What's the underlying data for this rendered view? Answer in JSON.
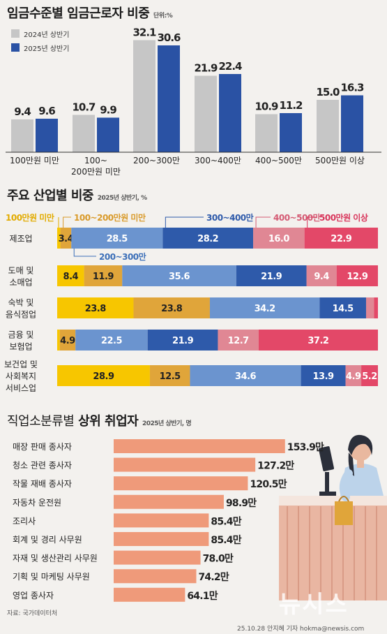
{
  "section1": {
    "title_bold": "임금수준별 임금근로자 비중",
    "unit": "단위:%"
  },
  "section2": {
    "title_bold": "주요 산업별 비중",
    "unit": "2025년 상반기, %"
  },
  "section3": {
    "title_light": "직업소분류별",
    "title_bold": "상위 취업자",
    "unit": "2025년 상반기, 명"
  },
  "colors": {
    "bg": "#f3f1ee",
    "gray": "#c6c6c6",
    "navy": "#2a52a4",
    "seg1": "#f7c600",
    "seg2": "#e0a53a",
    "seg3": "#6b94cf",
    "seg4": "#2e5aaa",
    "seg5": "#e08794",
    "seg6": "#e34868",
    "salmon": "#ef9a7a"
  },
  "chart_data": [
    {
      "type": "bar",
      "categories": [
        "100만원 미만",
        "100~\n200만원 미만",
        "200~300만",
        "300~400만",
        "400~500만",
        "500만원 이상"
      ],
      "series": [
        {
          "name": "2024년 상반기",
          "values": [
            9.4,
            10.7,
            32.1,
            21.9,
            10.9,
            15.0
          ]
        },
        {
          "name": "2025년 상반기",
          "values": [
            9.6,
            9.9,
            30.6,
            22.4,
            11.2,
            16.3
          ]
        }
      ],
      "legend": "top-left"
    },
    {
      "type": "bar",
      "orientation": "horizontal-stacked",
      "segment_labels": [
        "100만원 미만",
        "100~200만원 미만",
        "200~300만",
        "300~400만",
        "400~500만",
        "500만원 이상"
      ],
      "categories": [
        "제조업",
        "도매 및\n소매업",
        "숙박 및\n음식점업",
        "금융 및\n보험업",
        "보건업 및\n사회복지\n서비스업"
      ],
      "rows": [
        [
          1.0,
          3.4,
          28.5,
          28.2,
          16.0,
          22.9
        ],
        [
          8.4,
          11.9,
          35.6,
          21.9,
          9.4,
          12.9
        ],
        [
          23.8,
          23.8,
          34.2,
          14.5,
          2.5,
          1.2
        ],
        [
          0.8,
          4.9,
          22.5,
          21.9,
          12.7,
          37.2
        ],
        [
          28.9,
          12.5,
          34.6,
          13.9,
          4.9,
          5.2
        ]
      ],
      "shown_labels": [
        [
          "",
          "3.4",
          "28.5",
          "28.2",
          "16.0",
          "22.9"
        ],
        [
          "8.4",
          "11.9",
          "35.6",
          "21.9",
          "9.4",
          "12.9"
        ],
        [
          "23.8",
          "23.8",
          "34.2",
          "14.5",
          "",
          ""
        ],
        [
          "",
          "4.9",
          "22.5",
          "21.9",
          "12.7",
          "37.2"
        ],
        [
          "28.9",
          "12.5",
          "34.6",
          "13.9",
          "4.9",
          "5.2"
        ]
      ]
    },
    {
      "type": "bar",
      "orientation": "horizontal",
      "categories": [
        "매장 판매 종사자",
        "청소 관련 종사자",
        "작물 재배 종사자",
        "자동차 운전원",
        "조리사",
        "회계 및 경리 사무원",
        "자재 및 생산관리 사무원",
        "기획 및 마케팅 사무원",
        "영업 종사자"
      ],
      "values": [
        153.9,
        127.2,
        120.5,
        98.9,
        85.4,
        85.4,
        78.0,
        74.2,
        64.1
      ],
      "value_suffix": "만"
    }
  ],
  "footer": {
    "source": "자료: 국가데이터처",
    "credit": "25.10.28 안지혜 기자 hokma@newsis.com",
    "watermark": "뉴시스"
  }
}
